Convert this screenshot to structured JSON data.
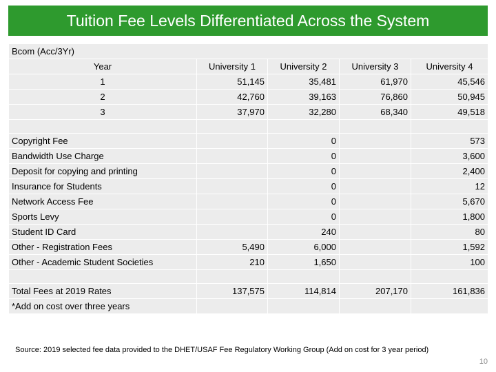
{
  "header": {
    "title": "Tuition Fee Levels Differentiated Across the System"
  },
  "table": {
    "caption": "Bcom (Acc/3Yr)",
    "columns": [
      "Year",
      "University 1",
      "University 2",
      "University 3",
      "University 4"
    ],
    "year_rows": [
      [
        "1",
        "51,145",
        "35,481",
        "61,970",
        "45,546"
      ],
      [
        "2",
        "42,760",
        "39,163",
        "76,860",
        "50,945"
      ],
      [
        "3",
        "37,970",
        "32,280",
        "68,340",
        "49,518"
      ]
    ],
    "fee_rows": [
      [
        "Copyright Fee",
        null,
        "0",
        null,
        "573"
      ],
      [
        "Bandwidth Use Charge",
        null,
        "0",
        null,
        "3,600"
      ],
      [
        "Deposit for copying and printing",
        null,
        "0",
        null,
        "2,400"
      ],
      [
        "Insurance for Students",
        null,
        "0",
        null,
        "12"
      ],
      [
        "Network Access Fee",
        null,
        "0",
        null,
        "5,670"
      ],
      [
        "Sports Levy",
        null,
        "0",
        null,
        "1,800"
      ],
      [
        "Student ID Card",
        null,
        "240",
        null,
        "80"
      ],
      [
        "Other - Registration Fees",
        "5,490",
        "6,000",
        null,
        "1,592"
      ],
      [
        "Other - Academic Student Societies",
        "210",
        "1,650",
        null,
        "100"
      ]
    ],
    "total_rows": [
      [
        "Total Fees at 2019 Rates",
        "137,575",
        "114,814",
        "207,170",
        "161,836"
      ],
      [
        "*Add on cost over three years",
        null,
        null,
        null,
        null
      ]
    ]
  },
  "footer": {
    "source": "Source: 2019 selected fee  data provided to the DHET/USAF Fee Regulatory Working Group (Add on cost for 3 year period)",
    "page": "10"
  }
}
